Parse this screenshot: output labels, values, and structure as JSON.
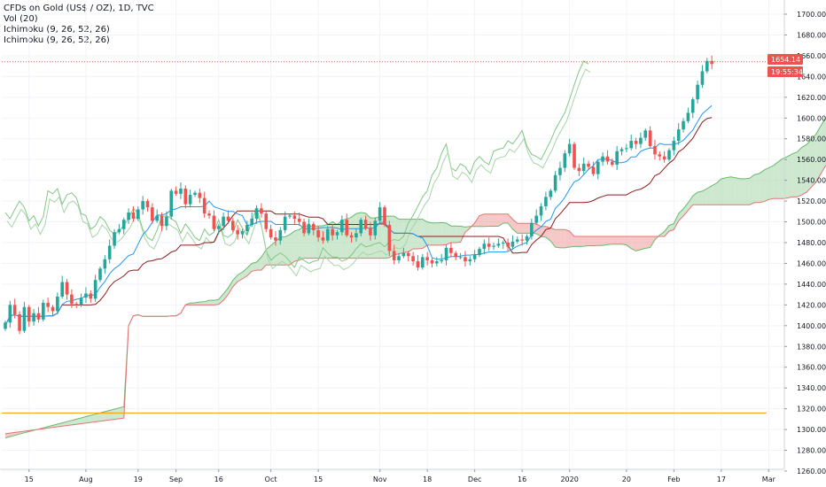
{
  "legend": {
    "title": "CFDs on Gold (US$ / OZ), 1D, TVC",
    "volume": "Vol (20)",
    "ichimoku_1": "Ichimoku (9, 26, 52, 26)",
    "ichimoku_2": "Ichimoku (9, 26, 52, 26)"
  },
  "price_badge": {
    "price": "1654.14",
    "countdown": "19:55:34"
  },
  "colors": {
    "up": "#26a69a",
    "down": "#ef5350",
    "conversion": "#2196f3",
    "base": "#8e1b1b",
    "lagging": "#43a047",
    "kumo_bull": "#a5d6a7",
    "kumo_bear": "#ef9a9a",
    "orange_line": "#ff9800",
    "grid": "#f0f3fa",
    "price_line": "#ef5350"
  },
  "chart_data": {
    "type": "candlestick",
    "y_axis": {
      "min": 1260,
      "max": 1710,
      "ticks": [
        "1700.00",
        "1680.00",
        "1660.00",
        "1640.00",
        "1620.00",
        "1600.00",
        "1580.00",
        "1560.00",
        "1540.00",
        "1520.00",
        "1500.00",
        "1480.00",
        "1460.00",
        "1440.00",
        "1420.00",
        "1400.00",
        "1380.00",
        "1360.00",
        "1340.00",
        "1320.00",
        "1300.00",
        "1280.00",
        "1260.00"
      ]
    },
    "x_axis": {
      "labels": [
        {
          "label": "15",
          "bar": 5
        },
        {
          "label": "Aug",
          "bar": 17
        },
        {
          "label": "19",
          "bar": 28
        },
        {
          "label": "Sep",
          "bar": 36
        },
        {
          "label": "16",
          "bar": 45
        },
        {
          "label": "Oct",
          "bar": 56
        },
        {
          "label": "15",
          "bar": 66
        },
        {
          "label": "Nov",
          "bar": 79
        },
        {
          "label": "18",
          "bar": 89
        },
        {
          "label": "Dec",
          "bar": 99
        },
        {
          "label": "16",
          "bar": 109
        },
        {
          "label": "2020",
          "bar": 119
        },
        {
          "label": "20",
          "bar": 131
        },
        {
          "label": "Feb",
          "bar": 141
        },
        {
          "label": "17",
          "bar": 151
        },
        {
          "label": "Mar",
          "bar": 161
        }
      ]
    },
    "horizontal_line": 1316,
    "last_price": 1654.14,
    "close": [
      1403,
      1420,
      1411,
      1395,
      1418,
      1404,
      1412,
      1406,
      1422,
      1418,
      1414,
      1428,
      1442,
      1430,
      1421,
      1420,
      1427,
      1431,
      1426,
      1444,
      1455,
      1464,
      1477,
      1490,
      1493,
      1502,
      1509,
      1503,
      1512,
      1520,
      1514,
      1501,
      1506,
      1496,
      1505,
      1530,
      1527,
      1532,
      1517,
      1526,
      1528,
      1523,
      1508,
      1506,
      1493,
      1496,
      1505,
      1501,
      1492,
      1488,
      1491,
      1497,
      1503,
      1513,
      1508,
      1493,
      1485,
      1482,
      1492,
      1505,
      1506,
      1503,
      1500,
      1489,
      1498,
      1492,
      1485,
      1482,
      1493,
      1487,
      1490,
      1502,
      1487,
      1485,
      1489,
      1502,
      1494,
      1487,
      1501,
      1514,
      1497,
      1472,
      1463,
      1467,
      1470,
      1467,
      1462,
      1456,
      1466,
      1463,
      1460,
      1462,
      1463,
      1475,
      1470,
      1466,
      1466,
      1462,
      1464,
      1468,
      1474,
      1479,
      1476,
      1477,
      1479,
      1480,
      1476,
      1481,
      1483,
      1482,
      1486,
      1499,
      1506,
      1515,
      1524,
      1530,
      1545,
      1552,
      1566,
      1575,
      1552,
      1549,
      1556,
      1553,
      1546,
      1558,
      1563,
      1558,
      1555,
      1568,
      1570,
      1571,
      1578,
      1575,
      1581,
      1588,
      1573,
      1565,
      1563,
      1560,
      1569,
      1578,
      1589,
      1597,
      1605,
      1618,
      1632,
      1645,
      1655,
      1652
    ]
  }
}
